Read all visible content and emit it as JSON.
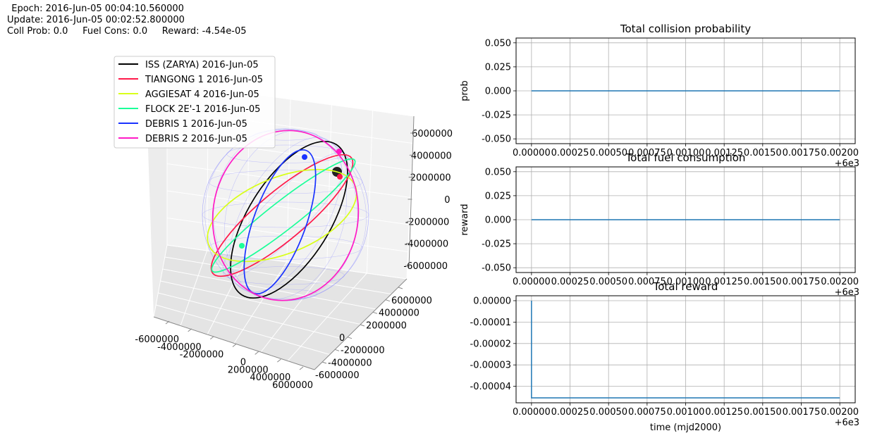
{
  "header": {
    "epoch_line": "  Epoch: 2016-Jun-05 00:04:10.560000",
    "update_line": "Update: 2016-Jun-05 00:02:52.800000",
    "status_line": "Coll Prob: 0.0     Fuel Cons: 0.0     Reward: -4.54e-05"
  },
  "colors": {
    "series_line": "#1f77b4",
    "grid": "#b0b0b0",
    "earth_mesh": "#8a8aff"
  },
  "chart_data": [
    {
      "type": "line3d",
      "title": "",
      "legend_placement": "upper-left",
      "axes": {
        "x_ticks": [
          "-6000000",
          "-4000000",
          "-2000000",
          "0",
          "2000000",
          "4000000",
          "6000000"
        ],
        "y_ticks": [
          "6000000",
          "4000000",
          "2000000",
          "0",
          "-2000000",
          "-4000000",
          "-6000000"
        ],
        "z_ticks": [
          "6000000",
          "4000000",
          "2000000",
          "0",
          "-2000000",
          "-4000000",
          "-6000000"
        ]
      },
      "series": [
        {
          "name": "ISS (ZARYA) 2016-Jun-05",
          "color": "#000000"
        },
        {
          "name": "TIANGONG 1 2016-Jun-05",
          "color": "#ff1a4a"
        },
        {
          "name": "AGGIESAT 4 2016-Jun-05",
          "color": "#d9ff1a"
        },
        {
          "name": "FLOCK 2E'-1 2016-Jun-05",
          "color": "#1aff99"
        },
        {
          "name": "DEBRIS 1 2016-Jun-05",
          "color": "#1a33ff"
        },
        {
          "name": "DEBRIS 2 2016-Jun-05",
          "color": "#ff1ac6"
        }
      ]
    },
    {
      "type": "line",
      "title": "Total collision probability",
      "xlabel": "",
      "ylabel": "prob",
      "x_offset_label": "+6e3",
      "xlim": [
        -0.0001,
        0.0021
      ],
      "ylim": [
        -0.055,
        0.055
      ],
      "x_ticks": [
        "0.00000",
        "0.00025",
        "0.00050",
        "0.00075",
        "0.00100",
        "0.00125",
        "0.00150",
        "0.00175",
        "0.00200"
      ],
      "y_ticks": [
        "0.050",
        "0.025",
        "0.000",
        "-0.025",
        "-0.050"
      ],
      "series": [
        {
          "x": [
            0.0,
            0.002
          ],
          "y": [
            0.0,
            0.0
          ]
        }
      ]
    },
    {
      "type": "line",
      "title": "Total fuel consumption",
      "xlabel": "",
      "ylabel": "reward",
      "x_offset_label": "+6e3",
      "xlim": [
        -0.0001,
        0.0021
      ],
      "ylim": [
        -0.055,
        0.055
      ],
      "x_ticks": [
        "0.00000",
        "0.00025",
        "0.00050",
        "0.00075",
        "0.00100",
        "0.00125",
        "0.00150",
        "0.00175",
        "0.00200"
      ],
      "y_ticks": [
        "0.050",
        "0.025",
        "0.000",
        "-0.025",
        "-0.050"
      ],
      "series": [
        {
          "x": [
            0.0,
            0.002
          ],
          "y": [
            0.0,
            0.0
          ]
        }
      ]
    },
    {
      "type": "line",
      "title": "Total reward",
      "xlabel": "time (mjd2000)",
      "ylabel": "",
      "x_offset_label": "+6e3",
      "xlim": [
        -0.0001,
        0.0021
      ],
      "ylim": [
        -4.77e-05,
        2.3e-06
      ],
      "x_ticks": [
        "0.00000",
        "0.00025",
        "0.00050",
        "0.00075",
        "0.00100",
        "0.00125",
        "0.00150",
        "0.00175",
        "0.00200"
      ],
      "y_ticks": [
        "0.00000",
        "-0.00001",
        "-0.00002",
        "-0.00003",
        "-0.00004"
      ],
      "series": [
        {
          "x": [
            0.0,
            0.0,
            0.002
          ],
          "y": [
            0.0,
            -4.54e-05,
            -4.54e-05
          ]
        }
      ]
    }
  ]
}
